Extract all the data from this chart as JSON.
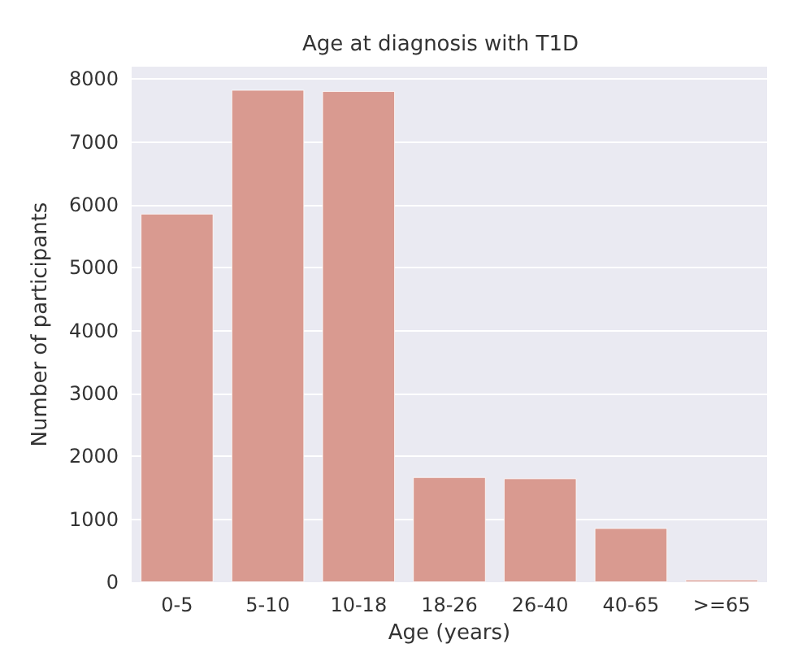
{
  "chart_data": {
    "type": "bar",
    "title": "Age at diagnosis with T1D",
    "xlabel": "Age (years)",
    "ylabel": "Number of participants",
    "categories": [
      "0-5",
      "5-10",
      "10-18",
      "18-26",
      "26-40",
      "40-65",
      ">=65"
    ],
    "values": [
      5860,
      7830,
      7810,
      1670,
      1650,
      860,
      40
    ],
    "color": "#d99a90",
    "ylim": [
      0,
      8200
    ],
    "yticks": [
      0,
      1000,
      2000,
      3000,
      4000,
      5000,
      6000,
      7000,
      8000
    ],
    "grid": "y"
  }
}
